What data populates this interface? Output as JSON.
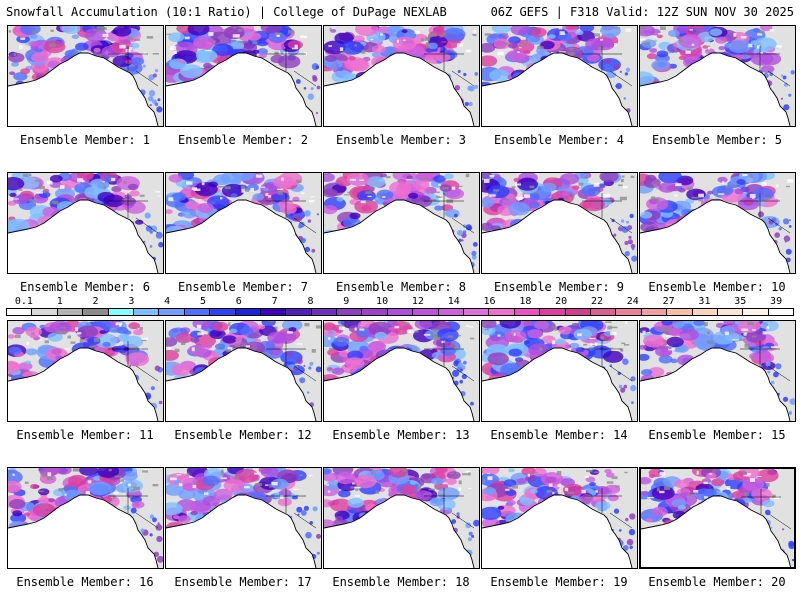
{
  "header": {
    "title_left": "Snowfall Accumulation (10:1 Ratio) | College of DuPage NEXLAB",
    "title_right": "06Z GEFS | F318 Valid: 12Z SUN NOV 30 2025"
  },
  "panels": [
    {
      "label": "Ensemble Member: 1"
    },
    {
      "label": "Ensemble Member: 2"
    },
    {
      "label": "Ensemble Member: 3"
    },
    {
      "label": "Ensemble Member: 4"
    },
    {
      "label": "Ensemble Member: 5"
    },
    {
      "label": "Ensemble Member: 6"
    },
    {
      "label": "Ensemble Member: 7"
    },
    {
      "label": "Ensemble Member: 8"
    },
    {
      "label": "Ensemble Member: 9"
    },
    {
      "label": "Ensemble Member: 10"
    },
    {
      "label": "Ensemble Member: 11"
    },
    {
      "label": "Ensemble Member: 12"
    },
    {
      "label": "Ensemble Member: 13"
    },
    {
      "label": "Ensemble Member: 14"
    },
    {
      "label": "Ensemble Member: 15"
    },
    {
      "label": "Ensemble Member: 16"
    },
    {
      "label": "Ensemble Member: 17"
    },
    {
      "label": "Ensemble Member: 18"
    },
    {
      "label": "Ensemble Member: 19"
    },
    {
      "label": "Ensemble Member: 20"
    }
  ],
  "colorbar": {
    "labels": [
      "0.1",
      "1",
      "2",
      "3",
      "4",
      "5",
      "6",
      "7",
      "8",
      "9",
      "10",
      "12",
      "14",
      "16",
      "18",
      "20",
      "22",
      "24",
      "27",
      "31",
      "35",
      "39"
    ],
    "colors": [
      "#ffffff",
      "#d9d9d9",
      "#b3b3b3",
      "#8c8c8c",
      "#7fffff",
      "#7fbfff",
      "#6f9fff",
      "#4f6fff",
      "#2f3fff",
      "#1f1fdf",
      "#3f00bf",
      "#4f1fbf",
      "#6f2fbf",
      "#8f3fbf",
      "#9f3fcf",
      "#af4fdf",
      "#bf4fdf",
      "#cf5fdf",
      "#df6fdf",
      "#ef6fcf",
      "#ef4fbf",
      "#df3f9f",
      "#cf3f8f",
      "#df5f8f",
      "#ef7f9f",
      "#ef9f9f",
      "#f5bfa5",
      "#f8d5bd",
      "#fbe5d5",
      "#fdf2ea",
      "#ffffff"
    ]
  }
}
